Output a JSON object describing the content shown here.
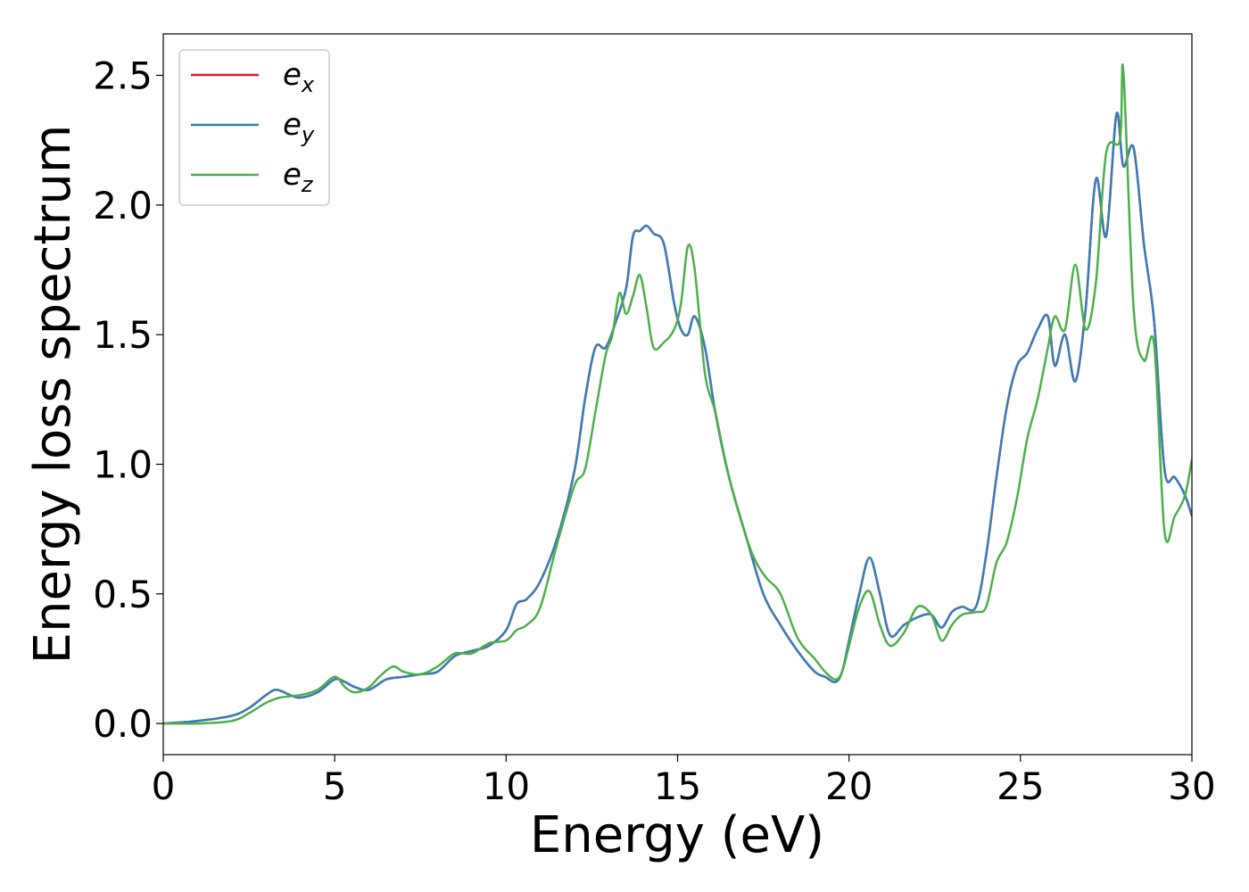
{
  "chart_data": {
    "type": "line",
    "xlabel": "Energy (eV)",
    "ylabel": "Energy loss spectrum",
    "xlim": [
      0,
      30
    ],
    "ylim": [
      -0.12,
      2.66
    ],
    "xticks": [
      0,
      5,
      10,
      15,
      20,
      25,
      30
    ],
    "yticks": [
      0.0,
      0.5,
      1.0,
      1.5,
      2.0,
      2.5
    ],
    "grid": false,
    "legend_position": "top-left",
    "series": [
      {
        "name": "e_x",
        "legend_base": "e",
        "legend_sub": "x",
        "color": "#e41a1c",
        "x": [
          0,
          1,
          2,
          2.5,
          3,
          3.3,
          3.7,
          4,
          4.5,
          5,
          5.3,
          5.6,
          6,
          6.5,
          7,
          7.5,
          8,
          8.5,
          9,
          9.5,
          10,
          10.3,
          10.6,
          11,
          11.5,
          12,
          12.3,
          12.6,
          12.9,
          13.2,
          13.5,
          13.7,
          13.9,
          14.1,
          14.3,
          14.6,
          14.9,
          15.1,
          15.3,
          15.5,
          15.8,
          16.1,
          16.5,
          17,
          17.5,
          18,
          18.5,
          19,
          19.3,
          19.6,
          19.8,
          20,
          20.3,
          20.6,
          20.9,
          21.2,
          21.6,
          22,
          22.4,
          22.7,
          23,
          23.3,
          23.7,
          24,
          24.3,
          24.6,
          24.9,
          25.2,
          25.5,
          25.8,
          26,
          26.3,
          26.6,
          26.9,
          27.2,
          27.5,
          27.8,
          28,
          28.3,
          28.6,
          28.9,
          29.2,
          29.5,
          29.8,
          30
        ],
        "y": [
          0,
          0.01,
          0.03,
          0.06,
          0.11,
          0.13,
          0.11,
          0.1,
          0.12,
          0.17,
          0.16,
          0.14,
          0.13,
          0.17,
          0.18,
          0.19,
          0.2,
          0.26,
          0.28,
          0.3,
          0.36,
          0.46,
          0.48,
          0.55,
          0.72,
          0.98,
          1.25,
          1.45,
          1.45,
          1.55,
          1.68,
          1.88,
          1.9,
          1.92,
          1.89,
          1.85,
          1.62,
          1.52,
          1.5,
          1.57,
          1.45,
          1.2,
          0.95,
          0.72,
          0.5,
          0.38,
          0.28,
          0.2,
          0.18,
          0.16,
          0.2,
          0.32,
          0.5,
          0.64,
          0.5,
          0.34,
          0.38,
          0.41,
          0.42,
          0.37,
          0.43,
          0.45,
          0.45,
          0.65,
          0.95,
          1.22,
          1.38,
          1.43,
          1.52,
          1.57,
          1.38,
          1.5,
          1.32,
          1.6,
          2.1,
          1.88,
          2.35,
          2.15,
          2.22,
          1.85,
          1.55,
          0.98,
          0.95,
          0.88,
          0.8
        ]
      },
      {
        "name": "e_y",
        "legend_base": "e",
        "legend_sub": "y",
        "color": "#377eb8",
        "x": [
          0,
          1,
          2,
          2.5,
          3,
          3.3,
          3.7,
          4,
          4.5,
          5,
          5.3,
          5.6,
          6,
          6.5,
          7,
          7.5,
          8,
          8.5,
          9,
          9.5,
          10,
          10.3,
          10.6,
          11,
          11.5,
          12,
          12.3,
          12.6,
          12.9,
          13.2,
          13.5,
          13.7,
          13.9,
          14.1,
          14.3,
          14.6,
          14.9,
          15.1,
          15.3,
          15.5,
          15.8,
          16.1,
          16.5,
          17,
          17.5,
          18,
          18.5,
          19,
          19.3,
          19.6,
          19.8,
          20,
          20.3,
          20.6,
          20.9,
          21.2,
          21.6,
          22,
          22.4,
          22.7,
          23,
          23.3,
          23.7,
          24,
          24.3,
          24.6,
          24.9,
          25.2,
          25.5,
          25.8,
          26,
          26.3,
          26.6,
          26.9,
          27.2,
          27.5,
          27.8,
          28,
          28.3,
          28.6,
          28.9,
          29.2,
          29.5,
          29.8,
          30
        ],
        "y": [
          0,
          0.01,
          0.03,
          0.06,
          0.11,
          0.13,
          0.11,
          0.1,
          0.12,
          0.17,
          0.16,
          0.14,
          0.13,
          0.17,
          0.18,
          0.19,
          0.2,
          0.26,
          0.28,
          0.3,
          0.36,
          0.46,
          0.48,
          0.55,
          0.72,
          0.98,
          1.25,
          1.45,
          1.45,
          1.55,
          1.68,
          1.88,
          1.9,
          1.92,
          1.89,
          1.85,
          1.62,
          1.52,
          1.5,
          1.57,
          1.45,
          1.2,
          0.95,
          0.72,
          0.5,
          0.38,
          0.28,
          0.2,
          0.18,
          0.16,
          0.2,
          0.32,
          0.5,
          0.64,
          0.5,
          0.34,
          0.38,
          0.41,
          0.42,
          0.37,
          0.43,
          0.45,
          0.45,
          0.65,
          0.95,
          1.22,
          1.38,
          1.43,
          1.52,
          1.57,
          1.38,
          1.5,
          1.32,
          1.6,
          2.1,
          1.88,
          2.35,
          2.15,
          2.22,
          1.85,
          1.55,
          0.98,
          0.95,
          0.88,
          0.8
        ]
      },
      {
        "name": "e_z",
        "legend_base": "e",
        "legend_sub": "z",
        "color": "#4daf4a",
        "x": [
          0,
          1,
          2,
          2.5,
          3,
          3.4,
          4,
          4.5,
          5,
          5.3,
          5.6,
          6,
          6.3,
          6.7,
          7,
          7.5,
          8,
          8.5,
          9,
          9.5,
          10,
          10.3,
          10.6,
          11,
          11.5,
          12,
          12.3,
          12.6,
          12.9,
          13.1,
          13.3,
          13.5,
          13.7,
          13.9,
          14.1,
          14.3,
          14.6,
          14.9,
          15.1,
          15.3,
          15.5,
          15.8,
          16.1,
          16.5,
          17,
          17.3,
          17.6,
          18,
          18.5,
          19,
          19.3,
          19.6,
          19.8,
          20,
          20.3,
          20.6,
          20.9,
          21.2,
          21.6,
          22,
          22.4,
          22.7,
          23,
          23.3,
          23.7,
          24,
          24.3,
          24.6,
          24.9,
          25.2,
          25.5,
          25.8,
          26,
          26.3,
          26.6,
          26.9,
          27.2,
          27.5,
          27.9,
          28,
          28.3,
          28.6,
          28.9,
          29.2,
          29.5,
          29.8,
          30
        ],
        "y": [
          0,
          0.0,
          0.01,
          0.04,
          0.08,
          0.1,
          0.11,
          0.13,
          0.18,
          0.14,
          0.12,
          0.14,
          0.18,
          0.22,
          0.2,
          0.19,
          0.22,
          0.27,
          0.27,
          0.31,
          0.32,
          0.36,
          0.38,
          0.45,
          0.7,
          0.92,
          0.98,
          1.2,
          1.42,
          1.5,
          1.66,
          1.58,
          1.65,
          1.73,
          1.6,
          1.45,
          1.47,
          1.52,
          1.62,
          1.84,
          1.75,
          1.35,
          1.2,
          0.95,
          0.72,
          0.62,
          0.56,
          0.5,
          0.33,
          0.25,
          0.2,
          0.17,
          0.2,
          0.3,
          0.45,
          0.51,
          0.38,
          0.3,
          0.35,
          0.45,
          0.42,
          0.32,
          0.38,
          0.42,
          0.43,
          0.45,
          0.62,
          0.7,
          0.87,
          1.1,
          1.25,
          1.45,
          1.57,
          1.52,
          1.77,
          1.52,
          1.7,
          2.2,
          2.25,
          2.52,
          1.6,
          1.4,
          1.46,
          0.74,
          0.8,
          0.88,
          1.02
        ]
      }
    ]
  }
}
